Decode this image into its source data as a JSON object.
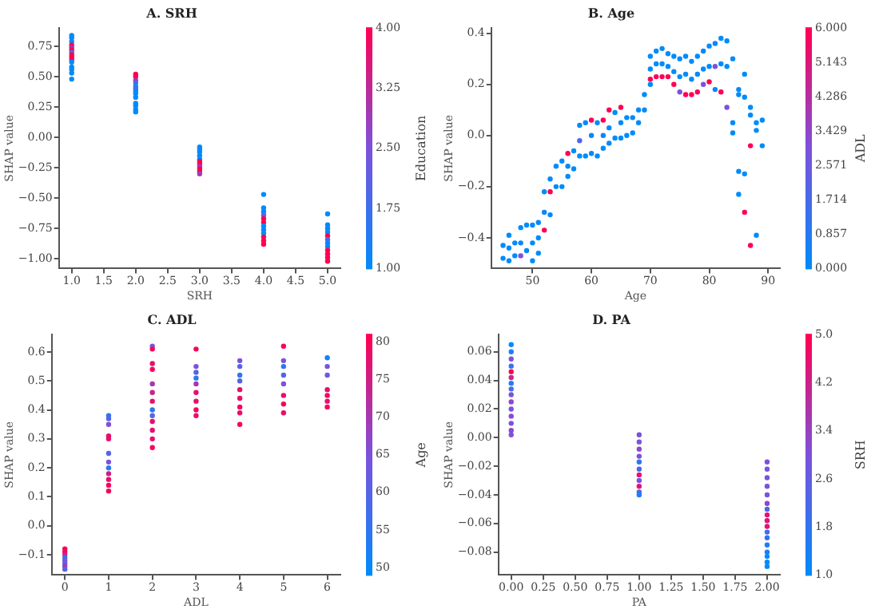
{
  "chart_data": [
    {
      "type": "scatter",
      "title": "A. SRH",
      "xlabel": "SRH",
      "ylabel": "SHAP value",
      "clabel": "Education",
      "marker": "circle",
      "x": [
        1,
        1,
        1,
        1,
        1,
        1,
        1,
        1,
        1,
        1,
        1,
        1,
        1,
        1,
        1,
        2,
        2,
        2,
        2,
        2,
        2,
        2,
        2,
        2,
        2,
        2,
        2,
        2,
        3,
        3,
        3,
        3,
        3,
        3,
        3,
        3,
        3,
        3,
        3,
        4,
        4,
        4,
        4,
        4,
        4,
        4,
        4,
        4,
        4,
        4,
        4,
        5,
        5,
        5,
        5,
        5,
        5,
        5,
        5,
        5,
        5,
        5,
        5
      ],
      "values": [
        0.84,
        0.82,
        0.79,
        0.76,
        0.74,
        0.72,
        0.7,
        0.68,
        0.66,
        0.64,
        0.62,
        0.58,
        0.56,
        0.53,
        0.48,
        0.52,
        0.5,
        0.47,
        0.45,
        0.42,
        0.4,
        0.38,
        0.36,
        0.33,
        0.28,
        0.26,
        0.23,
        0.21,
        -0.08,
        -0.1,
        -0.12,
        -0.15,
        -0.18,
        -0.2,
        -0.22,
        -0.24,
        -0.26,
        -0.28,
        -0.3,
        -0.47,
        -0.58,
        -0.61,
        -0.64,
        -0.67,
        -0.7,
        -0.73,
        -0.76,
        -0.79,
        -0.82,
        -0.85,
        -0.88,
        -0.63,
        -0.72,
        -0.75,
        -0.78,
        -0.81,
        -0.84,
        -0.87,
        -0.9,
        -0.93,
        -0.96,
        -0.99,
        -1.02
      ],
      "cvalues": [
        1,
        1,
        1,
        4,
        3,
        4,
        2,
        4,
        4,
        4,
        1,
        1,
        1,
        1,
        1,
        4,
        4,
        3,
        2,
        1,
        2,
        1,
        1,
        1,
        1,
        1,
        1,
        1,
        1,
        1,
        1,
        1,
        1,
        4,
        4,
        3,
        4,
        4,
        3,
        1,
        1,
        1,
        2,
        4,
        4,
        1,
        1,
        1,
        4,
        4,
        4,
        1,
        1,
        1,
        1,
        4,
        2,
        1,
        1,
        4,
        4,
        4,
        4
      ],
      "xlim": [
        0.8,
        5.2
      ],
      "xticks": [
        {
          "value": 1,
          "label": "1.0"
        },
        {
          "value": 1.5,
          "label": "1.5"
        },
        {
          "value": 2,
          "label": "2.0"
        },
        {
          "value": 2.5,
          "label": "2.5"
        },
        {
          "value": 3,
          "label": "3.0"
        },
        {
          "value": 3.5,
          "label": "3.5"
        },
        {
          "value": 4,
          "label": "4.0"
        },
        {
          "value": 4.5,
          "label": "4.5"
        },
        {
          "value": 5,
          "label": "5.0"
        }
      ],
      "ylim": [
        -1.08,
        0.9
      ],
      "yticks": [
        {
          "value": -1,
          "label": "−1.00"
        },
        {
          "value": -0.75,
          "label": "−0.75"
        },
        {
          "value": -0.5,
          "label": "−0.50"
        },
        {
          "value": -0.25,
          "label": "−0.25"
        },
        {
          "value": 0,
          "label": "0.00"
        },
        {
          "value": 0.25,
          "label": "0.25"
        },
        {
          "value": 0.5,
          "label": "0.50"
        },
        {
          "value": 0.75,
          "label": "0.75"
        }
      ],
      "clim": [
        1,
        4
      ],
      "cticks": [
        {
          "value": 1,
          "label": "1.00"
        },
        {
          "value": 1.75,
          "label": "1.75"
        },
        {
          "value": 2.5,
          "label": "2.50"
        },
        {
          "value": 3.25,
          "label": "3.25"
        },
        {
          "value": 4,
          "label": "4.00"
        }
      ]
    },
    {
      "type": "scatter",
      "title": "B. Age",
      "xlabel": "Age",
      "ylabel": "SHAP value",
      "clabel": "ADL",
      "marker": "circle",
      "x": [
        45,
        45,
        46,
        46,
        46,
        47,
        47,
        48,
        48,
        48,
        49,
        49,
        50,
        50,
        50,
        51,
        51,
        51,
        52,
        52,
        52,
        53,
        53,
        53,
        54,
        54,
        55,
        55,
        56,
        56,
        56,
        57,
        57,
        58,
        58,
        58,
        59,
        59,
        60,
        60,
        60,
        61,
        61,
        62,
        62,
        62,
        63,
        63,
        63,
        64,
        64,
        65,
        65,
        65,
        66,
        66,
        67,
        67,
        68,
        68,
        69,
        69,
        70,
        70,
        70,
        70,
        71,
        71,
        71,
        72,
        72,
        72,
        73,
        73,
        73,
        74,
        74,
        74,
        75,
        75,
        75,
        76,
        76,
        76,
        77,
        77,
        77,
        78,
        78,
        78,
        79,
        79,
        79,
        80,
        80,
        80,
        81,
        81,
        81,
        82,
        82,
        82,
        83,
        83,
        83,
        84,
        84,
        84,
        85,
        85,
        85,
        85,
        86,
        86,
        86,
        86,
        87,
        87,
        87,
        87,
        88,
        88,
        88,
        89,
        89
      ],
      "values": [
        -0.43,
        -0.48,
        -0.39,
        -0.44,
        -0.49,
        -0.42,
        -0.47,
        -0.36,
        -0.42,
        -0.47,
        -0.35,
        -0.45,
        -0.35,
        -0.42,
        -0.49,
        -0.34,
        -0.4,
        -0.46,
        -0.22,
        -0.3,
        -0.37,
        -0.17,
        -0.22,
        -0.31,
        -0.12,
        -0.2,
        -0.1,
        -0.2,
        -0.07,
        -0.12,
        -0.16,
        -0.06,
        -0.13,
        0.04,
        -0.02,
        -0.08,
        0.05,
        -0.08,
        0.06,
        0,
        -0.07,
        0.05,
        -0.08,
        0.06,
        0,
        -0.05,
        0.1,
        0.03,
        -0.03,
        0.09,
        -0.01,
        0.11,
        0.05,
        -0.01,
        0.07,
        0,
        0.07,
        0.01,
        0.1,
        0.05,
        0.16,
        0.1,
        0.31,
        0.26,
        0.22,
        0.2,
        0.33,
        0.28,
        0.23,
        0.34,
        0.28,
        0.23,
        0.32,
        0.27,
        0.23,
        0.31,
        0.25,
        0.2,
        0.3,
        0.23,
        0.17,
        0.31,
        0.24,
        0.16,
        0.29,
        0.22,
        0.16,
        0.31,
        0.24,
        0.17,
        0.33,
        0.26,
        0.2,
        0.35,
        0.27,
        0.21,
        0.36,
        0.27,
        0.18,
        0.38,
        0.28,
        0.17,
        0.37,
        0.27,
        0.11,
        0.3,
        0.05,
        0.01,
        0.18,
        0.16,
        -0.14,
        -0.23,
        0.24,
        0.15,
        -0.15,
        -0.3,
        0.11,
        0.08,
        -0.04,
        -0.43,
        0.05,
        0.02,
        -0.39,
        0.06,
        -0.04
      ],
      "cvalues": [
        0,
        0,
        0,
        0,
        0,
        0,
        0,
        0,
        0,
        3,
        0,
        0,
        0,
        0,
        0,
        0,
        0,
        0,
        0,
        0,
        6,
        0,
        6,
        0,
        0,
        0,
        0,
        0,
        6,
        0,
        0,
        0,
        0,
        0,
        2,
        0,
        0,
        0,
        6,
        0,
        0,
        0,
        0,
        6,
        0,
        0,
        6,
        0,
        0,
        0,
        0,
        6,
        0,
        0,
        0,
        0,
        0,
        0,
        0,
        0,
        0,
        0,
        0,
        0,
        6,
        0,
        0,
        0,
        6,
        0,
        0,
        6,
        0,
        0,
        6,
        0,
        0,
        6,
        0,
        0,
        3,
        0,
        0,
        6,
        0,
        0,
        6,
        0,
        0,
        6,
        0,
        0,
        3,
        0,
        0,
        6,
        0,
        3,
        0,
        0,
        0,
        6,
        0,
        0,
        3,
        0,
        0,
        0,
        0,
        0,
        0,
        0,
        0,
        0,
        0,
        6,
        0,
        0,
        6,
        6,
        0,
        0,
        0,
        0,
        0
      ],
      "xlim": [
        43,
        92
      ],
      "xticks": [
        50,
        60,
        70,
        80,
        90
      ],
      "ylim": [
        -0.52,
        0.42
      ],
      "yticks": [
        {
          "value": -0.4,
          "label": "−0.4"
        },
        {
          "value": -0.2,
          "label": "−0.2"
        },
        {
          "value": 0,
          "label": "0.0"
        },
        {
          "value": 0.2,
          "label": "0.2"
        },
        {
          "value": 0.4,
          "label": "0.4"
        }
      ],
      "clim": [
        0,
        6
      ],
      "cticks": [
        {
          "value": 0,
          "label": "0.000"
        },
        {
          "value": 0.857,
          "label": "0.857"
        },
        {
          "value": 1.714,
          "label": "1.714"
        },
        {
          "value": 2.571,
          "label": "2.571"
        },
        {
          "value": 3.429,
          "label": "3.429"
        },
        {
          "value": 4.286,
          "label": "4.286"
        },
        {
          "value": 5.143,
          "label": "5.143"
        },
        {
          "value": 6,
          "label": "6.000"
        }
      ]
    },
    {
      "type": "scatter",
      "title": "C. ADL",
      "xlabel": "ADL",
      "ylabel": "SHAP value",
      "clabel": "Age",
      "marker": "circle",
      "x": [
        0,
        0,
        0,
        0,
        0,
        0,
        0,
        0,
        1,
        1,
        1,
        1,
        1,
        1,
        1,
        1,
        1,
        1,
        1,
        1,
        2,
        2,
        2,
        2,
        2,
        2,
        2,
        2,
        2,
        2,
        2,
        2,
        2,
        3,
        3,
        3,
        3,
        3,
        3,
        3,
        3,
        3,
        4,
        4,
        4,
        4,
        4,
        4,
        4,
        4,
        4,
        5,
        5,
        5,
        5,
        5,
        5,
        5,
        5,
        6,
        6,
        6,
        6,
        6,
        6,
        6
      ],
      "values": [
        -0.08,
        -0.09,
        -0.1,
        -0.11,
        -0.12,
        -0.13,
        -0.14,
        -0.15,
        0.38,
        0.37,
        0.35,
        0.31,
        0.3,
        0.25,
        0.22,
        0.2,
        0.18,
        0.16,
        0.14,
        0.12,
        0.62,
        0.61,
        0.56,
        0.54,
        0.49,
        0.46,
        0.43,
        0.4,
        0.38,
        0.36,
        0.33,
        0.3,
        0.27,
        0.61,
        0.55,
        0.53,
        0.51,
        0.49,
        0.46,
        0.43,
        0.4,
        0.38,
        0.57,
        0.55,
        0.52,
        0.5,
        0.47,
        0.44,
        0.41,
        0.39,
        0.35,
        0.62,
        0.57,
        0.55,
        0.52,
        0.49,
        0.45,
        0.42,
        0.39,
        0.58,
        0.55,
        0.52,
        0.47,
        0.45,
        0.43,
        0.41
      ],
      "cvalues": [
        80,
        80,
        75,
        55,
        65,
        60,
        70,
        60,
        55,
        60,
        65,
        78,
        78,
        60,
        65,
        55,
        75,
        78,
        80,
        80,
        65,
        80,
        78,
        80,
        70,
        75,
        78,
        55,
        60,
        78,
        78,
        78,
        80,
        80,
        65,
        60,
        55,
        70,
        78,
        78,
        80,
        78,
        65,
        60,
        55,
        60,
        78,
        78,
        80,
        78,
        80,
        80,
        65,
        55,
        60,
        65,
        78,
        80,
        78,
        52,
        65,
        62,
        78,
        80,
        78,
        80
      ],
      "xlim": [
        -0.3,
        6.3
      ],
      "xticks": [
        0,
        1,
        2,
        3,
        4,
        5,
        6
      ],
      "ylim": [
        -0.17,
        0.66
      ],
      "yticks": [
        {
          "value": -0.1,
          "label": "−0.1"
        },
        {
          "value": 0,
          "label": "0.0"
        },
        {
          "value": 0.1,
          "label": "0.1"
        },
        {
          "value": 0.2,
          "label": "0.2"
        },
        {
          "value": 0.3,
          "label": "0.3"
        },
        {
          "value": 0.4,
          "label": "0.4"
        },
        {
          "value": 0.5,
          "label": "0.5"
        },
        {
          "value": 0.6,
          "label": "0.6"
        }
      ],
      "clim": [
        49,
        81
      ],
      "cticks": [
        50,
        55,
        60,
        65,
        70,
        75,
        80
      ]
    },
    {
      "type": "scatter",
      "title": "D. PA",
      "xlabel": "PA",
      "ylabel": "SHAP value",
      "clabel": "SRH",
      "marker": "circle",
      "x": [
        0,
        0,
        0,
        0,
        0,
        0,
        0,
        0,
        0,
        0,
        0,
        0,
        0,
        0,
        0,
        1,
        1,
        1,
        1,
        1,
        1,
        1,
        1,
        1,
        1,
        1,
        2,
        2,
        2,
        2,
        2,
        2,
        2,
        2,
        2,
        2,
        2,
        2,
        2,
        2,
        2,
        2,
        2
      ],
      "values": [
        0.065,
        0.06,
        0.055,
        0.05,
        0.046,
        0.042,
        0.038,
        0.034,
        0.03,
        0.025,
        0.02,
        0.015,
        0.01,
        0.005,
        0.002,
        0.002,
        -0.003,
        -0.008,
        -0.013,
        -0.017,
        -0.022,
        -0.026,
        -0.03,
        -0.034,
        -0.038,
        -0.04,
        -0.017,
        -0.022,
        -0.028,
        -0.034,
        -0.04,
        -0.046,
        -0.05,
        -0.054,
        -0.058,
        -0.062,
        -0.066,
        -0.07,
        -0.075,
        -0.08,
        -0.083,
        -0.087,
        -0.09
      ],
      "cvalues": [
        1,
        1.5,
        3,
        2,
        5,
        4,
        1.5,
        2,
        3,
        3.2,
        3,
        3.2,
        3,
        3.2,
        3,
        3,
        3,
        3.2,
        3,
        1.8,
        2.2,
        4.5,
        3,
        4.5,
        2.2,
        1.5,
        3,
        3,
        3,
        3,
        3,
        3.2,
        2.2,
        4.5,
        4.5,
        4.5,
        2,
        1.8,
        1.5,
        1.5,
        1,
        1,
        1
      ],
      "xlim": [
        -0.1,
        2.1
      ],
      "xticks": [
        {
          "value": 0,
          "label": "0.00"
        },
        {
          "value": 0.25,
          "label": "0.25"
        },
        {
          "value": 0.5,
          "label": "0.50"
        },
        {
          "value": 0.75,
          "label": "0.75"
        },
        {
          "value": 1,
          "label": "1.00"
        },
        {
          "value": 1.25,
          "label": "1.25"
        },
        {
          "value": 1.5,
          "label": "1.50"
        },
        {
          "value": 1.75,
          "label": "1.75"
        },
        {
          "value": 2,
          "label": "2.00"
        }
      ],
      "ylim": [
        -0.096,
        0.072
      ],
      "yticks": [
        {
          "value": -0.08,
          "label": "−0.08"
        },
        {
          "value": -0.06,
          "label": "−0.06"
        },
        {
          "value": -0.04,
          "label": "−0.04"
        },
        {
          "value": -0.02,
          "label": "−0.02"
        },
        {
          "value": 0,
          "label": "0.00"
        },
        {
          "value": 0.02,
          "label": "0.02"
        },
        {
          "value": 0.04,
          "label": "0.04"
        },
        {
          "value": 0.06,
          "label": "0.06"
        }
      ],
      "clim": [
        1,
        5
      ],
      "cticks": [
        {
          "value": 1,
          "label": "1.0"
        },
        {
          "value": 1.8,
          "label": "1.8"
        },
        {
          "value": 2.6,
          "label": "2.6"
        },
        {
          "value": 3.4,
          "label": "3.4"
        },
        {
          "value": 4.2,
          "label": "4.2"
        },
        {
          "value": 5,
          "label": "5.0"
        }
      ]
    }
  ]
}
